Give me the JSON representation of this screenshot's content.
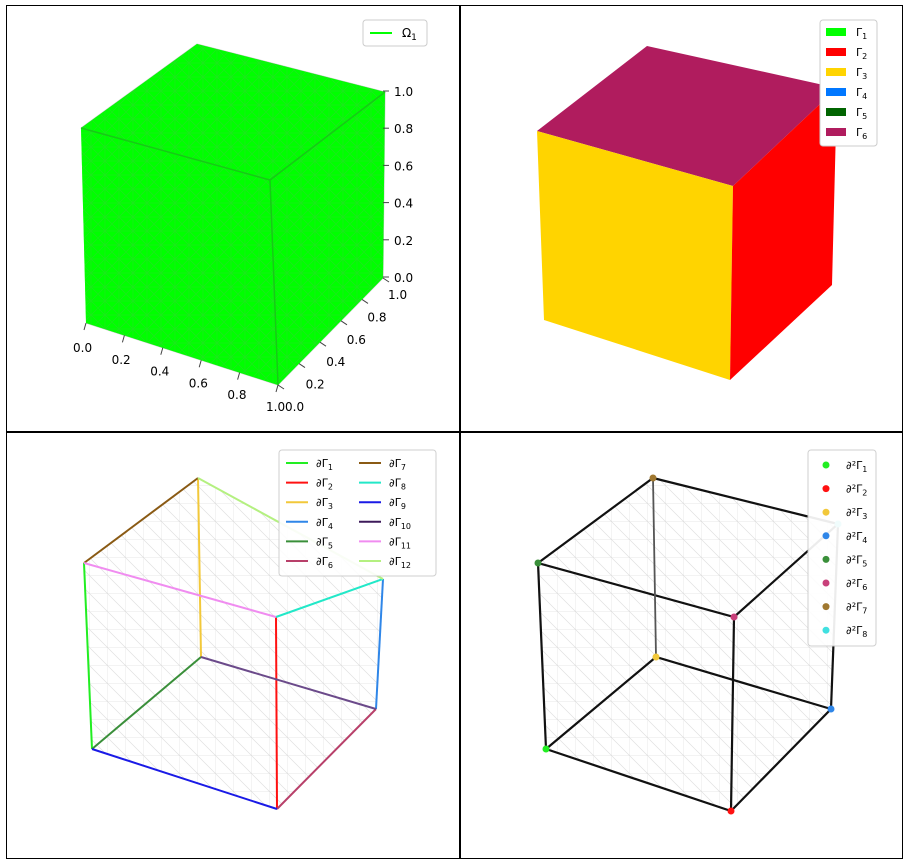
{
  "panels": {
    "mesh": {
      "legend": [
        {
          "name": "Ω",
          "sub": "1",
          "color": "#00ff00"
        }
      ],
      "z_ticks": [
        "0.0",
        "0.2",
        "0.4",
        "0.6",
        "0.8",
        "1.0"
      ],
      "x_ticks": [
        "0.0",
        "0.2",
        "0.4",
        "0.6",
        "0.8",
        "1.0"
      ],
      "y_ticks": [
        "0.0",
        "0.2",
        "0.4",
        "0.6",
        "0.8",
        "1.0"
      ]
    },
    "faces": {
      "legend": [
        {
          "name": "Γ",
          "sub": "1",
          "color": "#00ff00"
        },
        {
          "name": "Γ",
          "sub": "2",
          "color": "#ff0000"
        },
        {
          "name": "Γ",
          "sub": "3",
          "color": "#ffd400"
        },
        {
          "name": "Γ",
          "sub": "4",
          "color": "#0077ff"
        },
        {
          "name": "Γ",
          "sub": "5",
          "color": "#006400"
        },
        {
          "name": "Γ",
          "sub": "6",
          "color": "#b01c5e"
        }
      ]
    },
    "edges": {
      "legend_col1": [
        {
          "name": "∂Γ",
          "sub": "1",
          "color": "#22ee22"
        },
        {
          "name": "∂Γ",
          "sub": "2",
          "color": "#ff1111"
        },
        {
          "name": "∂Γ",
          "sub": "3",
          "color": "#f2c83a"
        },
        {
          "name": "∂Γ",
          "sub": "4",
          "color": "#2f86e8"
        },
        {
          "name": "∂Γ",
          "sub": "5",
          "color": "#3a8f3a"
        },
        {
          "name": "∂Γ",
          "sub": "6",
          "color": "#b8406a"
        }
      ],
      "legend_col2": [
        {
          "name": "∂Γ",
          "sub": "7",
          "color": "#8a5a14"
        },
        {
          "name": "∂Γ",
          "sub": "8",
          "color": "#22e8c8"
        },
        {
          "name": "∂Γ",
          "sub": "9",
          "color": "#1a1ae6"
        },
        {
          "name": "∂Γ",
          "sub": "10",
          "color": "#3d1a5a"
        },
        {
          "name": "∂Γ",
          "sub": "11",
          "color": "#f08cf0"
        },
        {
          "name": "∂Γ",
          "sub": "12",
          "color": "#b4f080"
        }
      ]
    },
    "vertices": {
      "legend": [
        {
          "name": "∂²Γ",
          "sub": "1",
          "color": "#22ee22"
        },
        {
          "name": "∂²Γ",
          "sub": "2",
          "color": "#ff1111"
        },
        {
          "name": "∂²Γ",
          "sub": "3",
          "color": "#f2c83a"
        },
        {
          "name": "∂²Γ",
          "sub": "4",
          "color": "#2f86e8"
        },
        {
          "name": "∂²Γ",
          "sub": "5",
          "color": "#3a8f3a"
        },
        {
          "name": "∂²Γ",
          "sub": "6",
          "color": "#c8407a"
        },
        {
          "name": "∂²Γ",
          "sub": "7",
          "color": "#a07830"
        },
        {
          "name": "∂²Γ",
          "sub": "8",
          "color": "#40e0e0"
        }
      ]
    }
  }
}
